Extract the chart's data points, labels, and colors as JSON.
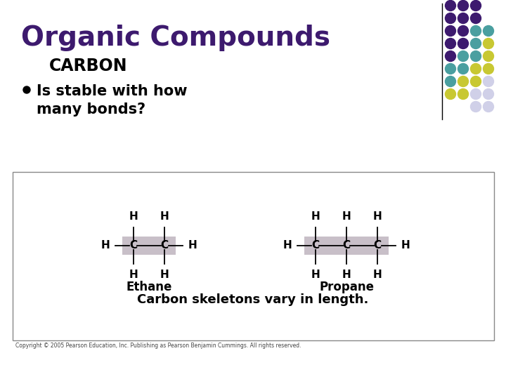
{
  "title": "Organic Compounds",
  "title_color": "#3d1a6e",
  "subtitle": "CARBON",
  "bullet_text_line1": "Is stable with how",
  "bullet_text_line2": "many bonds?",
  "ethane_label": "Ethane",
  "propane_label": "Propane",
  "carbon_skeleton_text": "Carbon skeletons vary in length.",
  "copyright_text": "Copyright © 2005 Pearson Education, Inc. Publishing as Pearson Benjamin Cummings. All rights reserved.",
  "bg_color": "#ffffff",
  "highlight_color": "#c8bfc8",
  "dot_colors": {
    "purple": "#3d1a6e",
    "teal": "#4a9fa0",
    "yellow": "#c8c832",
    "light": "#d0d0e8"
  },
  "dot_grid": [
    [
      "purple",
      "purple",
      "purple",
      "none"
    ],
    [
      "purple",
      "purple",
      "purple",
      "none"
    ],
    [
      "purple",
      "purple",
      "teal",
      "teal"
    ],
    [
      "purple",
      "purple",
      "teal",
      "yellow"
    ],
    [
      "purple",
      "teal",
      "teal",
      "yellow"
    ],
    [
      "teal",
      "teal",
      "yellow",
      "yellow"
    ],
    [
      "teal",
      "yellow",
      "yellow",
      "light"
    ],
    [
      "yellow",
      "yellow",
      "light",
      "light"
    ],
    [
      "none",
      "none",
      "light",
      "light"
    ]
  ]
}
